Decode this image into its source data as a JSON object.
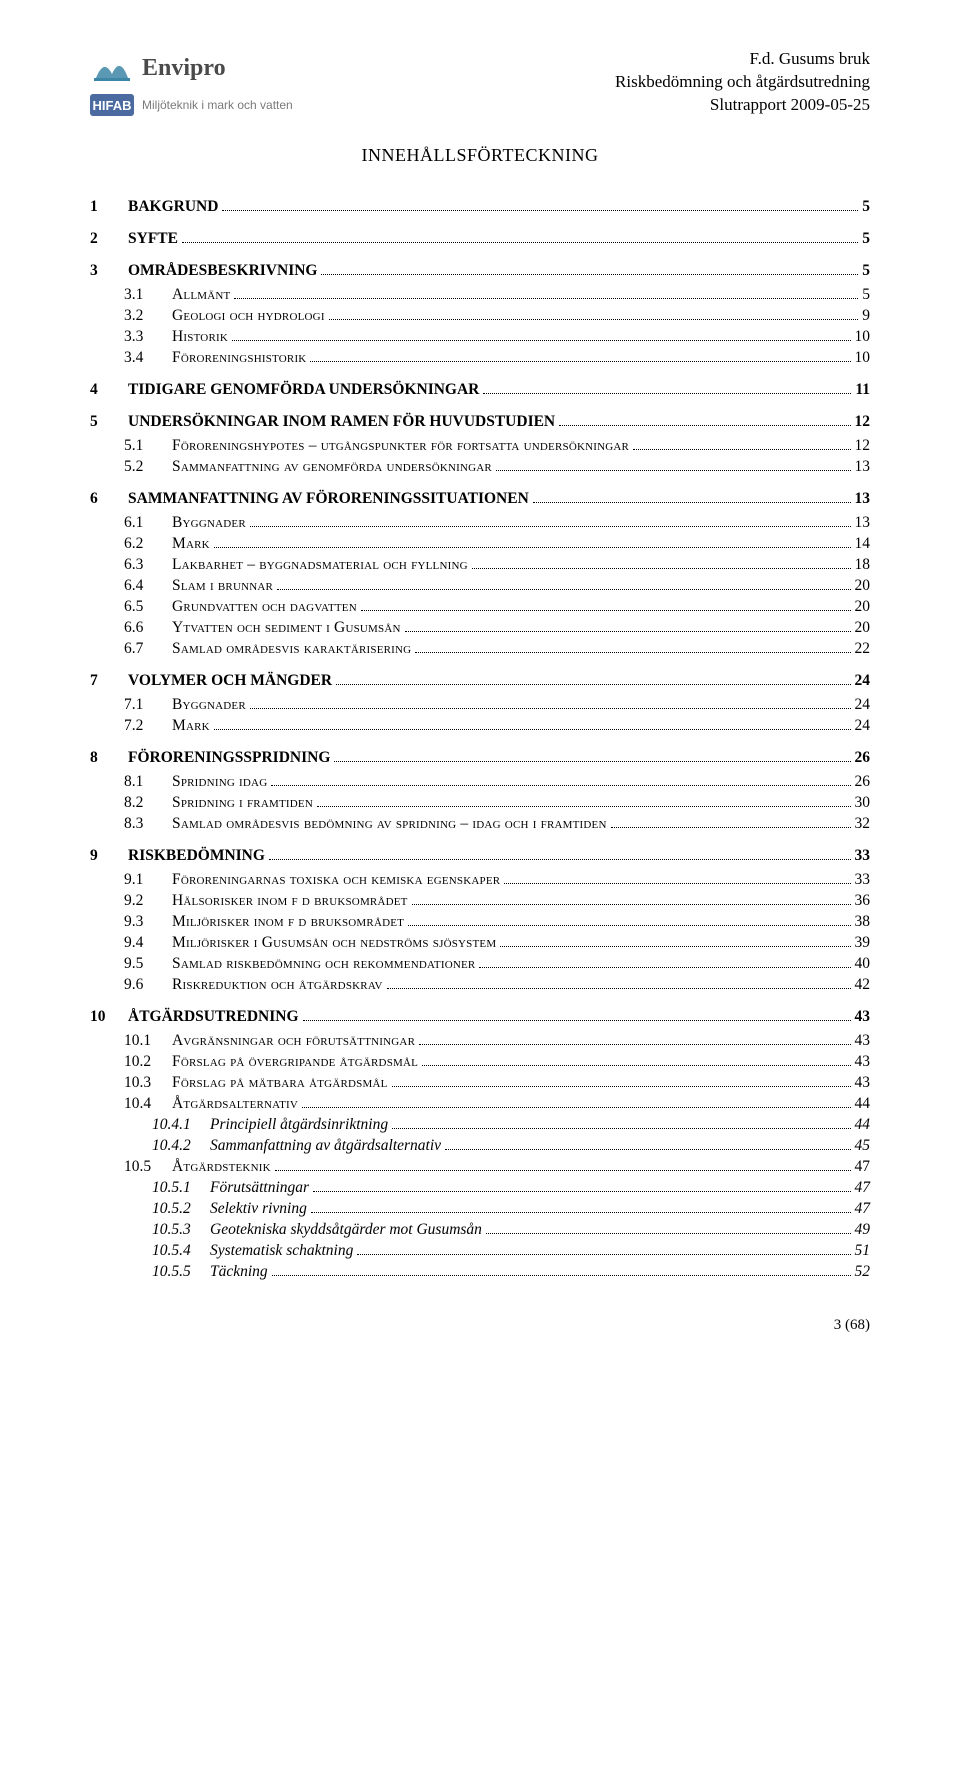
{
  "header": {
    "envipro_name": "Envipro",
    "hifab_mark": "HIFAB",
    "hifab_sub": "Miljöteknik i mark och vatten",
    "meta_line1": "F.d. Gusums bruk",
    "meta_line2": "Riskbedömning och åtgärdsutredning",
    "meta_line3": "Slutrapport 2009-05-25"
  },
  "title": "INNEHÅLLSFÖRTECKNING",
  "toc": [
    {
      "lvl": 1,
      "num": "1",
      "label": "BAKGRUND",
      "page": "5"
    },
    {
      "lvl": 1,
      "num": "2",
      "label": "SYFTE",
      "page": "5"
    },
    {
      "lvl": 1,
      "num": "3",
      "label": "OMRÅDESBESKRIVNING",
      "page": "5"
    },
    {
      "lvl": 2,
      "num": "3.1",
      "label": "Allmänt",
      "page": "5"
    },
    {
      "lvl": 2,
      "num": "3.2",
      "label": "Geologi och hydrologi",
      "page": "9"
    },
    {
      "lvl": 2,
      "num": "3.3",
      "label": "Historik",
      "page": "10"
    },
    {
      "lvl": 2,
      "num": "3.4",
      "label": "Föroreningshistorik",
      "page": "10"
    },
    {
      "lvl": 1,
      "num": "4",
      "label": "TIDIGARE GENOMFÖRDA UNDERSÖKNINGAR",
      "page": "11"
    },
    {
      "lvl": 1,
      "num": "5",
      "label": "UNDERSÖKNINGAR INOM RAMEN FÖR HUVUDSTUDIEN",
      "page": "12"
    },
    {
      "lvl": 2,
      "num": "5.1",
      "label": "Föroreningshypotes – utgångspunkter för fortsatta undersökningar",
      "page": "12"
    },
    {
      "lvl": 2,
      "num": "5.2",
      "label": "Sammanfattning av genomförda undersökningar",
      "page": "13"
    },
    {
      "lvl": 1,
      "num": "6",
      "label": "SAMMANFATTNING AV FÖRORENINGSSITUATIONEN",
      "page": "13"
    },
    {
      "lvl": 2,
      "num": "6.1",
      "label": "Byggnader",
      "page": "13"
    },
    {
      "lvl": 2,
      "num": "6.2",
      "label": "Mark",
      "page": "14"
    },
    {
      "lvl": 2,
      "num": "6.3",
      "label": "Lakbarhet – byggnadsmaterial och fyllning",
      "page": "18"
    },
    {
      "lvl": 2,
      "num": "6.4",
      "label": "Slam i brunnar",
      "page": "20"
    },
    {
      "lvl": 2,
      "num": "6.5",
      "label": "Grundvatten och dagvatten",
      "page": "20"
    },
    {
      "lvl": 2,
      "num": "6.6",
      "label": "Ytvatten och sediment i Gusumsån",
      "page": "20"
    },
    {
      "lvl": 2,
      "num": "6.7",
      "label": "Samlad områdesvis karaktärisering",
      "page": "22"
    },
    {
      "lvl": 1,
      "num": "7",
      "label": "VOLYMER OCH MÄNGDER",
      "page": "24"
    },
    {
      "lvl": 2,
      "num": "7.1",
      "label": "Byggnader",
      "page": "24"
    },
    {
      "lvl": 2,
      "num": "7.2",
      "label": "Mark",
      "page": "24"
    },
    {
      "lvl": 1,
      "num": "8",
      "label": "FÖRORENINGSSPRIDNING",
      "page": "26"
    },
    {
      "lvl": 2,
      "num": "8.1",
      "label": "Spridning idag",
      "page": "26"
    },
    {
      "lvl": 2,
      "num": "8.2",
      "label": "Spridning i framtiden",
      "page": "30"
    },
    {
      "lvl": 2,
      "num": "8.3",
      "label": "Samlad områdesvis bedömning av spridning – idag och i framtiden",
      "page": "32"
    },
    {
      "lvl": 1,
      "num": "9",
      "label": "RISKBEDÖMNING",
      "page": "33"
    },
    {
      "lvl": 2,
      "num": "9.1",
      "label": "Föroreningarnas toxiska och kemiska egenskaper",
      "page": "33"
    },
    {
      "lvl": 2,
      "num": "9.2",
      "label": "Hälsorisker inom f d bruksområdet",
      "page": "36"
    },
    {
      "lvl": 2,
      "num": "9.3",
      "label": "Miljörisker inom f d bruksområdet",
      "page": "38"
    },
    {
      "lvl": 2,
      "num": "9.4",
      "label": "Miljörisker i Gusumsån och nedströms sjösystem",
      "page": "39"
    },
    {
      "lvl": 2,
      "num": "9.5",
      "label": "Samlad riskbedömning och rekommendationer",
      "page": "40"
    },
    {
      "lvl": 2,
      "num": "9.6",
      "label": "Riskreduktion och åtgärdskrav",
      "page": "42"
    },
    {
      "lvl": 1,
      "num": "10",
      "label": "ÅTGÄRDSUTREDNING",
      "page": "43"
    },
    {
      "lvl": 2,
      "num": "10.1",
      "label": "Avgränsningar och förutsättningar",
      "page": "43"
    },
    {
      "lvl": 2,
      "num": "10.2",
      "label": "Förslag på övergripande åtgärdsmål",
      "page": "43"
    },
    {
      "lvl": 2,
      "num": "10.3",
      "label": "Förslag på mätbara åtgärdsmål",
      "page": "43"
    },
    {
      "lvl": 2,
      "num": "10.4",
      "label": "Åtgärdsalternativ",
      "page": "44"
    },
    {
      "lvl": 3,
      "num": "10.4.1",
      "label": "Principiell åtgärdsinriktning",
      "page": "44"
    },
    {
      "lvl": 3,
      "num": "10.4.2",
      "label": "Sammanfattning av åtgärdsalternativ",
      "page": "45"
    },
    {
      "lvl": 2,
      "num": "10.5",
      "label": "Åtgärdsteknik",
      "page": "47"
    },
    {
      "lvl": 3,
      "num": "10.5.1",
      "label": "Förutsättningar",
      "page": "47"
    },
    {
      "lvl": 3,
      "num": "10.5.2",
      "label": "Selektiv rivning",
      "page": "47"
    },
    {
      "lvl": 3,
      "num": "10.5.3",
      "label": "Geotekniska skyddsåtgärder mot Gusumsån",
      "page": "49"
    },
    {
      "lvl": 3,
      "num": "10.5.4",
      "label": "Systematisk schaktning",
      "page": "51"
    },
    {
      "lvl": 3,
      "num": "10.5.5",
      "label": "Täckning",
      "page": "52"
    }
  ],
  "footer": "3 (68)"
}
